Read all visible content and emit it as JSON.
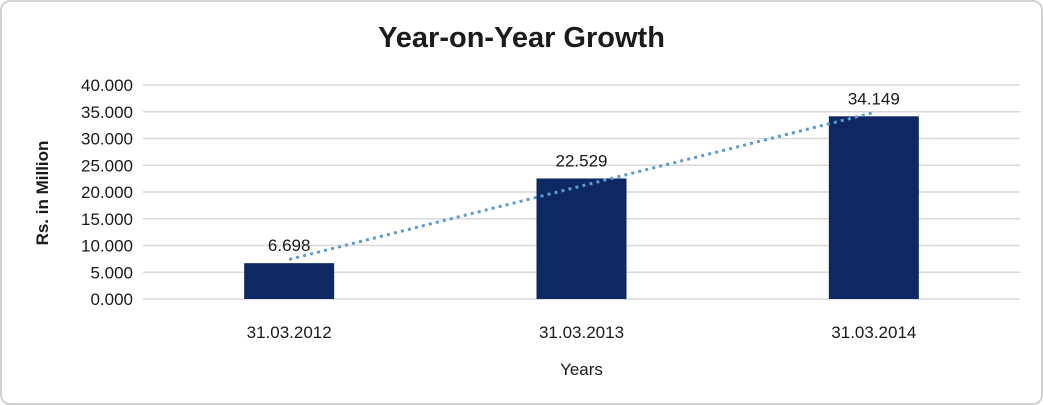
{
  "chart_data": {
    "type": "bar",
    "title": "Year-on-Year Growth",
    "xlabel": "Years",
    "ylabel": "Rs. in Million",
    "categories": [
      "31.03.2012",
      "31.03.2013",
      "31.03.2014"
    ],
    "values": [
      6.698,
      22.529,
      34.149
    ],
    "data_labels": [
      "6.698",
      "22.529",
      "34.149"
    ],
    "ylim": [
      0,
      40
    ],
    "ytick_values": [
      0,
      5,
      10,
      15,
      20,
      25,
      30,
      35,
      40
    ],
    "ytick_labels": [
      "0.000",
      "5.000",
      "10.000",
      "15.000",
      "20.000",
      "25.000",
      "30.000",
      "35.000",
      "40.000"
    ],
    "grid": true,
    "legend": "none",
    "trendline": {
      "type": "linear",
      "style": "dotted"
    },
    "colors": {
      "bar": "#0d2862",
      "trendline": "#5b9bd5",
      "gridline": "#d9d9d9",
      "text": "#1a1a1a",
      "frame_border": "#d2d2d2",
      "background": "#ffffff"
    }
  }
}
